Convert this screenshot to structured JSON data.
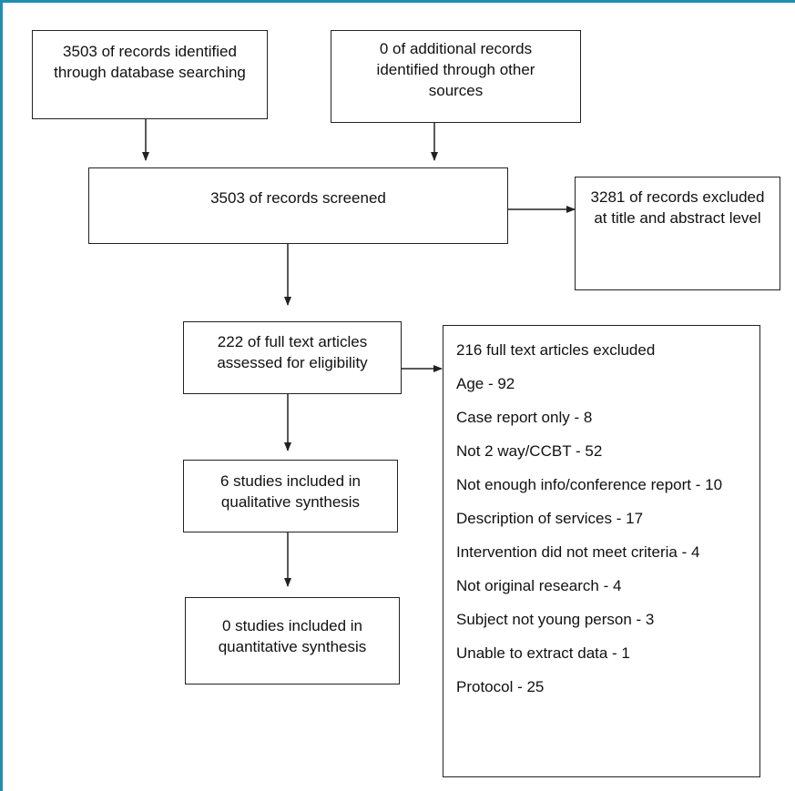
{
  "boxes": {
    "database": "3503 of records identified through database searching",
    "other_sources": "0 of additional records identified through other sources",
    "screened": "3503 of records screened",
    "excluded_title_abstract": "3281 of records excluded at title and abstract level",
    "full_text": "222 of full text articles assessed for eligibility",
    "qualitative": "6 studies included in qualitative synthesis",
    "quantitative": "0 studies included in quantitative synthesis"
  },
  "exclusions": {
    "header": "216 full text articles excluded",
    "items": [
      "Age - 92",
      "Case report only - 8",
      "Not 2 way/CCBT - 52",
      "Not enough info/conference report - 10",
      "Description of services - 17",
      "Intervention did not meet criteria - 4",
      "Not original research - 4",
      "Subject not young person - 3",
      "Unable to extract data - 1",
      "Protocol - 25"
    ]
  },
  "colors": {
    "frame": "#1e8fae",
    "stroke": "#222222"
  }
}
